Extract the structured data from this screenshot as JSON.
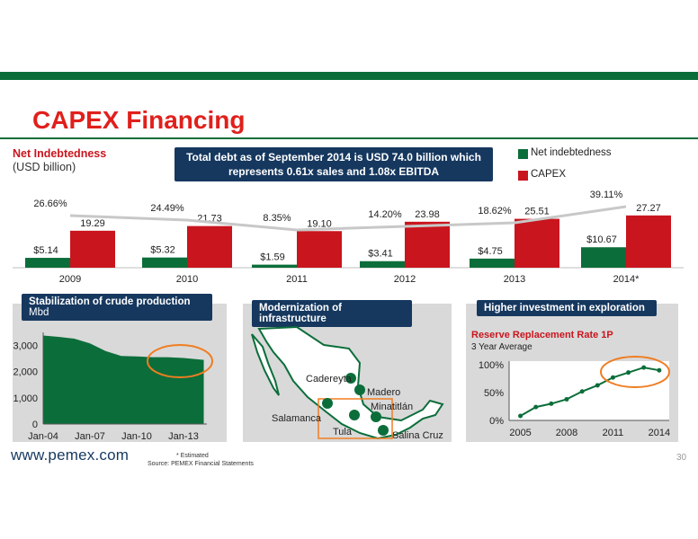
{
  "header": {
    "title": "CAPEX Financing"
  },
  "net_indebtedness": {
    "label": "Net Indebtedness",
    "unit": "(USD billion)"
  },
  "callout": {
    "line1": "Total debt as of September 2014 is USD 74.0 billion which",
    "line2": "represents 0.61x sales and 1.08x EBITDA"
  },
  "legend": {
    "net": "Net indebtedness",
    "capex": "CAPEX"
  },
  "colors": {
    "net": "#0b6e3a",
    "capex": "#c9151e",
    "line": "#c8c8c8",
    "navy": "#16385f",
    "accent_orange": "#f07d22"
  },
  "panels": {
    "crude": {
      "title": "Stabilization of crude production",
      "unit": "Mbd"
    },
    "infra": {
      "title": "Modernization of infrastructure"
    },
    "exploration": {
      "title": "Higher investment in exploration",
      "rate_title": "Reserve Replacement Rate 1P",
      "rate_sub": "3 Year Average"
    }
  },
  "map_labels": [
    "Cadereyta",
    "Madero",
    "Minatitlán",
    "Salamanca",
    "Tula",
    "Salina Cruz"
  ],
  "footer": {
    "url": "www.pemex.com",
    "note1": "* Estimated",
    "note2": "Source: PEMEX Financial Statements",
    "page": "30"
  },
  "chart_data": [
    {
      "type": "bar",
      "categories": [
        "2009",
        "2010",
        "2011",
        "2012",
        "2013",
        "2014*"
      ],
      "series": [
        {
          "name": "Net indebtedness",
          "values": [
            5.14,
            5.32,
            1.59,
            3.41,
            4.75,
            10.67
          ],
          "labels": [
            "$5.14",
            "$5.32",
            "$1.59",
            "$3.41",
            "$4.75",
            "$10.67"
          ]
        },
        {
          "name": "CAPEX",
          "values": [
            19.29,
            21.73,
            19.1,
            23.98,
            25.51,
            27.27
          ],
          "labels": [
            "19.29",
            "21.73",
            "19.10",
            "23.98",
            "25.51",
            "27.27"
          ]
        }
      ],
      "ratio_line": {
        "values": [
          26.66,
          24.49,
          8.35,
          14.2,
          18.62,
          39.11
        ],
        "labels": [
          "26.66%",
          "24.49%",
          "8.35%",
          "14.20%",
          "18.62%",
          "39.11%"
        ]
      },
      "ylim": [
        0,
        30
      ]
    },
    {
      "type": "area",
      "x_ticks": [
        "Jan-04",
        "Jan-07",
        "Jan-10",
        "Jan-13"
      ],
      "y_ticks": [
        "0",
        "1,000",
        "2,000",
        "3,000"
      ],
      "ylim": [
        0,
        3500
      ],
      "x_years": [
        2004,
        2005,
        2006,
        2007,
        2008,
        2009,
        2010,
        2011,
        2012,
        2013,
        2014.3
      ],
      "values": [
        3380,
        3330,
        3260,
        3080,
        2790,
        2600,
        2580,
        2550,
        2550,
        2520,
        2450
      ]
    },
    {
      "type": "line",
      "x_ticks": [
        "2005",
        "2008",
        "2011",
        "2014"
      ],
      "y_ticks": [
        "0%",
        "50%",
        "100%"
      ],
      "ylim": [
        0,
        100
      ],
      "x": [
        2005,
        2006,
        2007,
        2008,
        2009,
        2010,
        2011,
        2012,
        2013,
        2014
      ],
      "values": [
        8,
        24,
        30,
        38,
        52,
        63,
        77,
        86,
        95,
        90
      ]
    }
  ]
}
